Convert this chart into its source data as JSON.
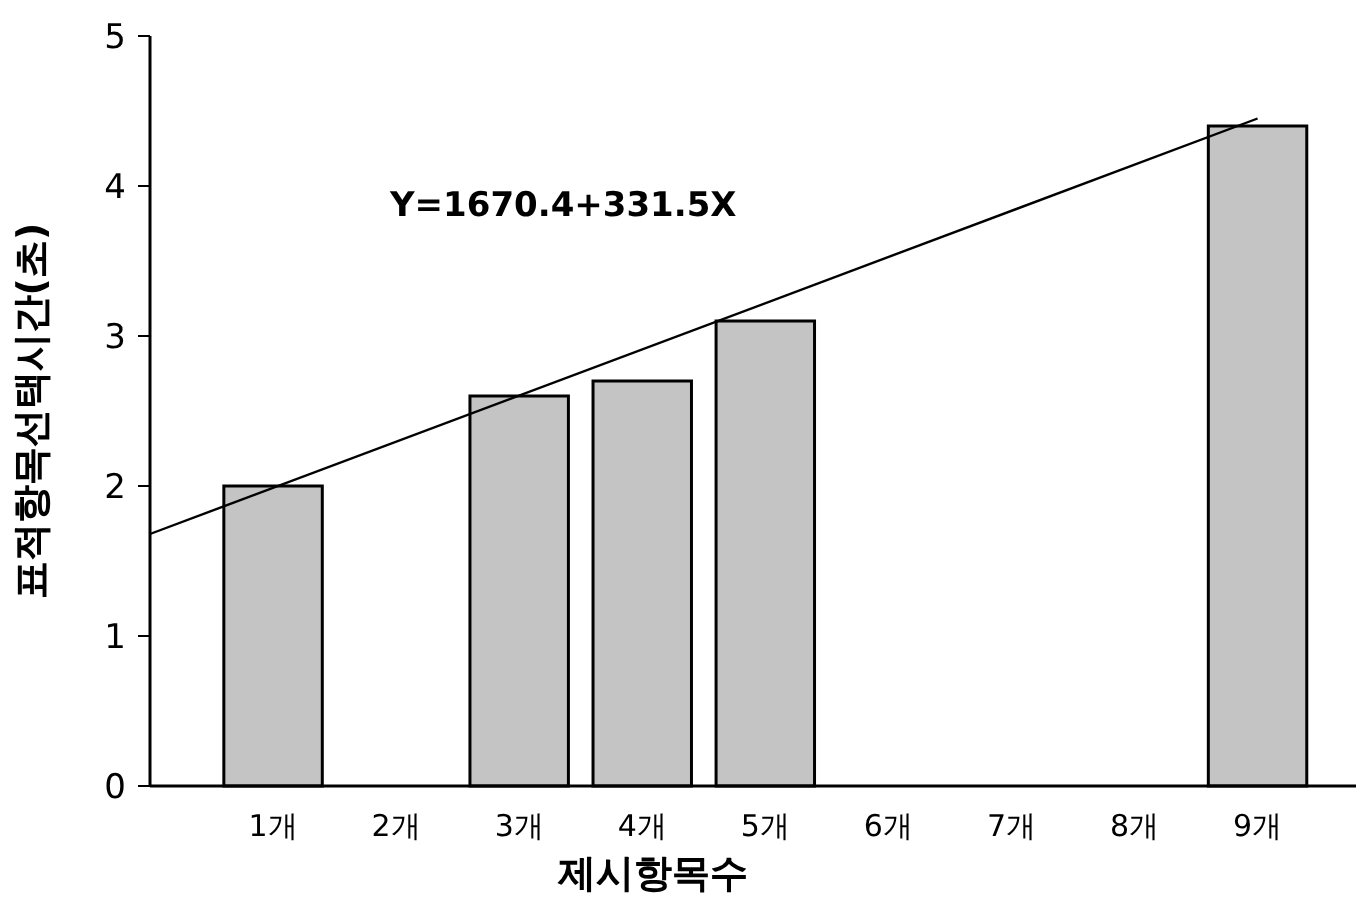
{
  "chart_data": {
    "type": "bar",
    "xlabel": "제시항목수",
    "ylabel": "표적항목선택시간(초)",
    "x": [
      1,
      3,
      4,
      5,
      9
    ],
    "values": [
      2.0,
      2.6,
      2.7,
      3.1,
      4.4
    ],
    "color": "#c4c4c4",
    "series": [
      {
        "type": "line",
        "color": "#000000",
        "x": [
          0,
          9
        ],
        "values": [
          1.68,
          4.45
        ]
      }
    ],
    "xlim": [
      0,
      9.8
    ],
    "xticks": [
      {
        "value": 1,
        "label": "1개"
      },
      {
        "value": 2,
        "label": "2개"
      },
      {
        "value": 3,
        "label": "3개"
      },
      {
        "value": 4,
        "label": "4개"
      },
      {
        "value": 5,
        "label": "5개"
      },
      {
        "value": 6,
        "label": "6개"
      },
      {
        "value": 7,
        "label": "7개"
      },
      {
        "value": 8,
        "label": "8개"
      },
      {
        "value": 9,
        "label": "9개"
      }
    ],
    "ylim": [
      0,
      5
    ],
    "yticks": [
      0,
      1,
      2,
      3,
      4,
      5
    ],
    "annotations": [
      "Y=1670.4+331.5X"
    ],
    "grid": false
  }
}
